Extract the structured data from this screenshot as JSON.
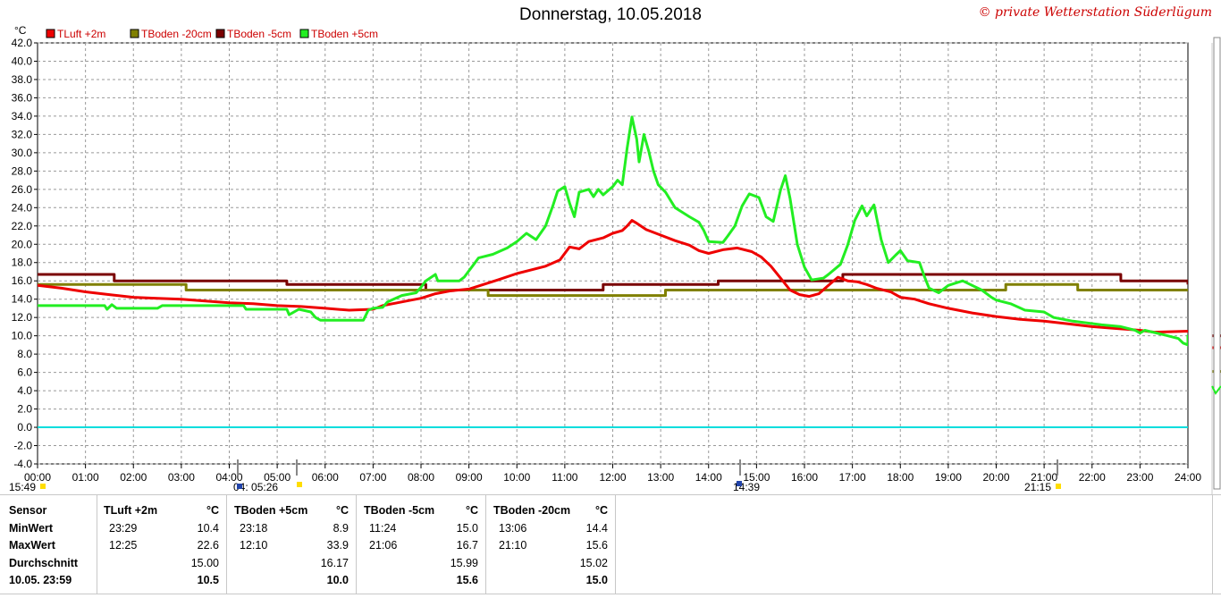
{
  "title": "Donnerstag, 10.05.2018",
  "copyright": "© private Wetterstation Süderlügum",
  "chart_data": {
    "type": "line",
    "ylabel": "°C",
    "ylim": [
      -4,
      42
    ],
    "y_ticks": [
      "-4.0",
      "-2.0",
      "0.0",
      "2.0",
      "4.0",
      "6.0",
      "8.0",
      "10.0",
      "12.0",
      "14.0",
      "16.0",
      "18.0",
      "20.0",
      "22.0",
      "24.0",
      "26.0",
      "28.0",
      "30.0",
      "32.0",
      "34.0",
      "36.0",
      "38.0",
      "40.0",
      "42.0"
    ],
    "x_ticks": [
      "00:00",
      "01:00",
      "02:00",
      "03:00",
      "04:00",
      "05:00",
      "06:00",
      "07:00",
      "08:00",
      "09:00",
      "10:00",
      "11:00",
      "12:00",
      "13:00",
      "14:00",
      "15:00",
      "16:00",
      "17:00",
      "18:00",
      "19:00",
      "20:00",
      "21:00",
      "22:00",
      "23:00",
      "24:00"
    ],
    "xlim": [
      0,
      24
    ],
    "grid": true,
    "legend_position": "top-left",
    "series": [
      {
        "name": "TLuft +2m",
        "color": "#ee0000",
        "points": [
          [
            0,
            15.5
          ],
          [
            0.5,
            15.2
          ],
          [
            1,
            14.8
          ],
          [
            1.5,
            14.5
          ],
          [
            2,
            14.2
          ],
          [
            2.5,
            14.1
          ],
          [
            3,
            14.0
          ],
          [
            3.5,
            13.8
          ],
          [
            4,
            13.6
          ],
          [
            4.5,
            13.5
          ],
          [
            5,
            13.3
          ],
          [
            5.5,
            13.2
          ],
          [
            6,
            13.0
          ],
          [
            6.5,
            12.8
          ],
          [
            7,
            12.9
          ],
          [
            7.2,
            13.3
          ],
          [
            7.5,
            13.6
          ],
          [
            7.8,
            13.9
          ],
          [
            8,
            14.1
          ],
          [
            8.3,
            14.6
          ],
          [
            8.6,
            14.9
          ],
          [
            9,
            15.1
          ],
          [
            9.3,
            15.6
          ],
          [
            9.6,
            16.1
          ],
          [
            10,
            16.8
          ],
          [
            10.3,
            17.2
          ],
          [
            10.6,
            17.6
          ],
          [
            10.9,
            18.3
          ],
          [
            11.1,
            19.7
          ],
          [
            11.3,
            19.5
          ],
          [
            11.5,
            20.3
          ],
          [
            11.8,
            20.7
          ],
          [
            12.0,
            21.2
          ],
          [
            12.2,
            21.5
          ],
          [
            12.3,
            22.0
          ],
          [
            12.4,
            22.6
          ],
          [
            12.5,
            22.3
          ],
          [
            12.7,
            21.6
          ],
          [
            13.0,
            21.0
          ],
          [
            13.3,
            20.4
          ],
          [
            13.6,
            19.9
          ],
          [
            13.8,
            19.3
          ],
          [
            14.0,
            19.0
          ],
          [
            14.3,
            19.4
          ],
          [
            14.6,
            19.6
          ],
          [
            14.9,
            19.2
          ],
          [
            15.1,
            18.6
          ],
          [
            15.3,
            17.6
          ],
          [
            15.5,
            16.3
          ],
          [
            15.7,
            15.0
          ],
          [
            15.9,
            14.5
          ],
          [
            16.1,
            14.3
          ],
          [
            16.3,
            14.6
          ],
          [
            16.5,
            15.5
          ],
          [
            16.7,
            16.4
          ],
          [
            16.9,
            16.0
          ],
          [
            17.1,
            15.9
          ],
          [
            17.3,
            15.6
          ],
          [
            17.5,
            15.2
          ],
          [
            17.8,
            14.8
          ],
          [
            18,
            14.2
          ],
          [
            18.3,
            14.0
          ],
          [
            18.6,
            13.5
          ],
          [
            19,
            13.0
          ],
          [
            19.5,
            12.5
          ],
          [
            20,
            12.1
          ],
          [
            20.5,
            11.8
          ],
          [
            21,
            11.6
          ],
          [
            21.5,
            11.3
          ],
          [
            22,
            11.0
          ],
          [
            22.5,
            10.8
          ],
          [
            23,
            10.6
          ],
          [
            23.3,
            10.4
          ],
          [
            24,
            10.5
          ]
        ]
      },
      {
        "name": "TBoden +5cm",
        "color": "#22ee22",
        "points": [
          [
            0,
            13.3
          ],
          [
            1.4,
            13.3
          ],
          [
            1.45,
            12.9
          ],
          [
            1.55,
            13.4
          ],
          [
            1.65,
            13.0
          ],
          [
            2.5,
            13.0
          ],
          [
            2.6,
            13.3
          ],
          [
            4.3,
            13.3
          ],
          [
            4.35,
            12.9
          ],
          [
            5.2,
            12.9
          ],
          [
            5.25,
            12.3
          ],
          [
            5.45,
            12.9
          ],
          [
            5.7,
            12.6
          ],
          [
            5.8,
            12.0
          ],
          [
            5.9,
            11.7
          ],
          [
            6.8,
            11.7
          ],
          [
            6.9,
            12.8
          ],
          [
            7.0,
            13.0
          ],
          [
            7.2,
            13.1
          ],
          [
            7.3,
            13.7
          ],
          [
            7.6,
            14.4
          ],
          [
            7.9,
            14.7
          ],
          [
            8.0,
            15.3
          ],
          [
            8.1,
            16.0
          ],
          [
            8.3,
            16.7
          ],
          [
            8.35,
            16.0
          ],
          [
            8.8,
            16.0
          ],
          [
            8.9,
            16.4
          ],
          [
            9.0,
            17.1
          ],
          [
            9.1,
            17.8
          ],
          [
            9.2,
            18.5
          ],
          [
            9.5,
            18.9
          ],
          [
            9.8,
            19.6
          ],
          [
            10.0,
            20.3
          ],
          [
            10.2,
            21.2
          ],
          [
            10.4,
            20.5
          ],
          [
            10.6,
            22.0
          ],
          [
            10.75,
            24.2
          ],
          [
            10.85,
            25.8
          ],
          [
            11.0,
            26.3
          ],
          [
            11.1,
            24.5
          ],
          [
            11.2,
            23.0
          ],
          [
            11.3,
            25.7
          ],
          [
            11.5,
            26.0
          ],
          [
            11.6,
            25.2
          ],
          [
            11.7,
            26.0
          ],
          [
            11.8,
            25.4
          ],
          [
            12.0,
            26.3
          ],
          [
            12.1,
            27.0
          ],
          [
            12.2,
            26.5
          ],
          [
            12.3,
            30.5
          ],
          [
            12.4,
            33.9
          ],
          [
            12.5,
            31.5
          ],
          [
            12.55,
            29.0
          ],
          [
            12.65,
            32.0
          ],
          [
            12.75,
            30.2
          ],
          [
            12.85,
            28.0
          ],
          [
            12.95,
            26.5
          ],
          [
            13.1,
            25.7
          ],
          [
            13.3,
            24.0
          ],
          [
            13.6,
            23.0
          ],
          [
            13.8,
            22.4
          ],
          [
            13.9,
            21.5
          ],
          [
            14.0,
            20.3
          ],
          [
            14.3,
            20.2
          ],
          [
            14.4,
            20.9
          ],
          [
            14.55,
            22.0
          ],
          [
            14.7,
            24.2
          ],
          [
            14.85,
            25.5
          ],
          [
            15.05,
            25.1
          ],
          [
            15.2,
            23.0
          ],
          [
            15.35,
            22.5
          ],
          [
            15.5,
            25.9
          ],
          [
            15.6,
            27.5
          ],
          [
            15.7,
            25.0
          ],
          [
            15.85,
            20.0
          ],
          [
            16.0,
            17.5
          ],
          [
            16.15,
            16.1
          ],
          [
            16.4,
            16.3
          ],
          [
            16.5,
            16.7
          ],
          [
            16.75,
            17.8
          ],
          [
            16.9,
            19.9
          ],
          [
            17.05,
            22.6
          ],
          [
            17.2,
            24.2
          ],
          [
            17.3,
            23.1
          ],
          [
            17.45,
            24.3
          ],
          [
            17.6,
            20.5
          ],
          [
            17.75,
            18.0
          ],
          [
            17.9,
            18.8
          ],
          [
            18.0,
            19.3
          ],
          [
            18.15,
            18.2
          ],
          [
            18.4,
            18.0
          ],
          [
            18.5,
            16.5
          ],
          [
            18.6,
            15.2
          ],
          [
            18.8,
            14.7
          ],
          [
            19.0,
            15.5
          ],
          [
            19.3,
            16.0
          ],
          [
            19.7,
            15.0
          ],
          [
            19.9,
            14.2
          ],
          [
            20.0,
            13.9
          ],
          [
            20.3,
            13.5
          ],
          [
            20.6,
            12.8
          ],
          [
            21.0,
            12.6
          ],
          [
            21.2,
            12.0
          ],
          [
            21.6,
            11.6
          ],
          [
            22.2,
            11.2
          ],
          [
            22.6,
            11.0
          ],
          [
            22.9,
            10.6
          ],
          [
            23.0,
            10.3
          ],
          [
            23.1,
            10.6
          ],
          [
            23.5,
            10.1
          ],
          [
            23.8,
            9.7
          ],
          [
            23.9,
            9.2
          ],
          [
            24.1,
            9.0
          ],
          [
            24.2,
            9.5
          ],
          [
            24.4,
            9.9
          ],
          [
            24.5,
            10.1
          ],
          [
            25.0,
            10.1
          ]
        ]
      },
      {
        "name": "TBoden -5cm",
        "color": "#7a0000",
        "points": [
          [
            0,
            16.7
          ],
          [
            1.6,
            16.7
          ],
          [
            1.6,
            16.0
          ],
          [
            5.2,
            16.0
          ],
          [
            5.2,
            15.6
          ],
          [
            8.1,
            15.6
          ],
          [
            8.1,
            15.0
          ],
          [
            11.8,
            15.0
          ],
          [
            11.8,
            15.6
          ],
          [
            14.2,
            15.6
          ],
          [
            14.2,
            16.0
          ],
          [
            16.8,
            16.0
          ],
          [
            16.8,
            16.7
          ],
          [
            22.6,
            16.7
          ],
          [
            22.6,
            16.0
          ],
          [
            25.0,
            16.0
          ],
          [
            25.0,
            15.6
          ]
        ]
      },
      {
        "name": "TBoden -20cm",
        "color": "#808000",
        "points": [
          [
            0,
            15.6
          ],
          [
            3.1,
            15.6
          ],
          [
            3.1,
            15.0
          ],
          [
            9.4,
            15.0
          ],
          [
            9.4,
            14.4
          ],
          [
            13.1,
            14.4
          ],
          [
            13.1,
            15.0
          ],
          [
            20.2,
            15.0
          ],
          [
            20.2,
            15.6
          ],
          [
            21.7,
            15.6
          ],
          [
            21.7,
            15.0
          ],
          [
            25.0,
            15.0
          ]
        ]
      }
    ],
    "zero_line_color": "#00dddd"
  },
  "markers": [
    "15:49",
    "04: 05:26",
    "14:39",
    "21:15"
  ],
  "stats": {
    "header_sensor": "Sensor",
    "rows": [
      "MinWert",
      "MaxWert",
      "Durchschnitt",
      "10.05. 23:59"
    ],
    "columns": [
      {
        "name": "TLuft +2m",
        "unit": "°C",
        "min_time": "23:29",
        "min": "10.4",
        "max_time": "12:25",
        "max": "22.6",
        "avg": "15.00",
        "last": "10.5"
      },
      {
        "name": "TBoden +5cm",
        "unit": "°C",
        "min_time": "23:18",
        "min": "8.9",
        "max_time": "12:10",
        "max": "33.9",
        "avg": "16.17",
        "last": "10.0"
      },
      {
        "name": "TBoden -5cm",
        "unit": "°C",
        "min_time": "11:24",
        "min": "15.0",
        "max_time": "21:06",
        "max": "16.7",
        "avg": "15.99",
        "last": "15.6"
      },
      {
        "name": "TBoden -20cm",
        "unit": "°C",
        "min_time": "13:06",
        "min": "14.4",
        "max_time": "21:10",
        "max": "15.6",
        "avg": "15.02",
        "last": "15.0"
      }
    ]
  }
}
